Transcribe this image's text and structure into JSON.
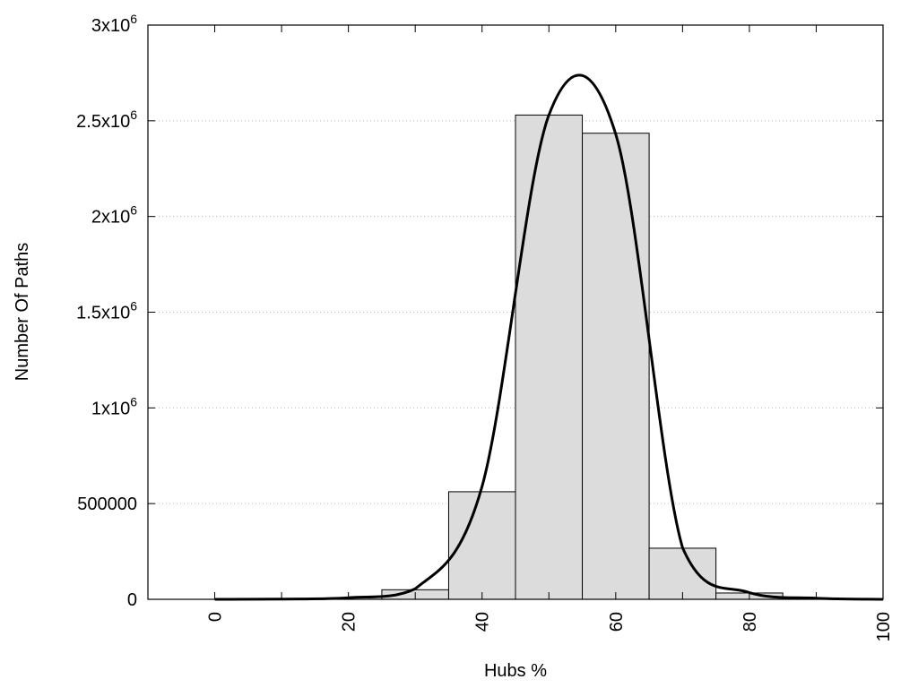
{
  "chart_data": {
    "type": "bar",
    "title": "",
    "xlabel": "Hubs %",
    "ylabel": "Number Of Paths",
    "xlim": [
      -10,
      100
    ],
    "ylim": [
      0,
      3000000
    ],
    "grid": "horizontal-dotted",
    "x_ticks": [
      0,
      10,
      20,
      30,
      40,
      50,
      60,
      70,
      80,
      90,
      100
    ],
    "x_tick_labels": [
      {
        "value": 0,
        "label": "0"
      },
      {
        "value": 20,
        "label": "20"
      },
      {
        "value": 40,
        "label": "40"
      },
      {
        "value": 60,
        "label": "60"
      },
      {
        "value": 80,
        "label": "80"
      },
      {
        "value": 100,
        "label": "100"
      }
    ],
    "y_tick_labels": [
      {
        "value": 0,
        "label": "0",
        "exp": ""
      },
      {
        "value": 500000,
        "label": "500000",
        "exp": ""
      },
      {
        "value": 1000000,
        "label": "1x10",
        "exp": "6"
      },
      {
        "value": 1500000,
        "label": "1.5x10",
        "exp": "6"
      },
      {
        "value": 2000000,
        "label": "2x10",
        "exp": "6"
      },
      {
        "value": 2500000,
        "label": "2.5x10",
        "exp": "6"
      },
      {
        "value": 3000000,
        "label": "3x10",
        "exp": "6"
      }
    ],
    "bar_width": 10,
    "bars": {
      "name": "histogram",
      "x": [
        30,
        40,
        50,
        60,
        70,
        80
      ],
      "values": [
        50000,
        562000,
        2530000,
        2435000,
        267000,
        33000
      ],
      "color": "#dcdcdc"
    },
    "line": {
      "name": "smoothed curve",
      "x": [
        0,
        10,
        20,
        30,
        40,
        50,
        60,
        70,
        80,
        90,
        100
      ],
      "values": [
        0,
        1000,
        8000,
        55000,
        590000,
        2530000,
        2430000,
        270000,
        35000,
        6000,
        0
      ],
      "color": "#000000"
    }
  }
}
